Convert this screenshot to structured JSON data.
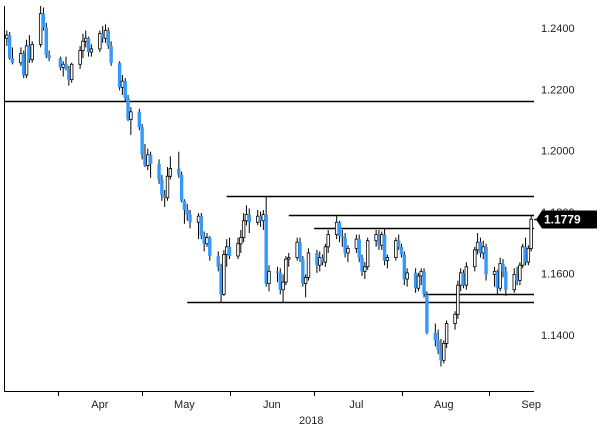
{
  "chart_data": {
    "type": "candlestick",
    "instrument": "",
    "title": "",
    "xlabel": "2018",
    "ylabel": "",
    "y_range": [
      1.122,
      1.2475
    ],
    "y_axis_side": "right",
    "y_ticks": [
      {
        "value": 1.24,
        "label": "1.2400"
      },
      {
        "value": 1.22,
        "label": "1.2200"
      },
      {
        "value": 1.2,
        "label": "1.2000"
      },
      {
        "value": 1.18,
        "label": "1.1800"
      },
      {
        "value": 1.16,
        "label": "1.1600"
      },
      {
        "value": 1.14,
        "label": "1.1400"
      }
    ],
    "x_range": [
      "2018-03-13",
      "2018-09-17"
    ],
    "x_ticks": [
      {
        "date": "2018-04-16",
        "label": "Apr"
      },
      {
        "date": "2018-05-16",
        "label": "May"
      },
      {
        "date": "2018-06-16",
        "label": "Jun"
      },
      {
        "date": "2018-07-16",
        "label": "Jul"
      },
      {
        "date": "2018-08-16",
        "label": "Aug"
      },
      {
        "date": "2018-09-16",
        "label": "Sep"
      }
    ],
    "month_boundaries": [
      "2018-04-01",
      "2018-05-01",
      "2018-06-01",
      "2018-07-01",
      "2018-08-01",
      "2018-09-01"
    ],
    "year_label": "2018",
    "grid": false,
    "legend": "none",
    "up_color": "#ffffff",
    "down_color": "#3399ff",
    "wick_color": "#000000",
    "current_price": {
      "value": 1.1779,
      "label": "1.1779"
    },
    "levels": [
      {
        "name": "resistance",
        "value": 1.2165,
        "from": "2018-03-13",
        "to": "2018-09-17"
      },
      {
        "name": "resistance",
        "value": 1.1855,
        "from": "2018-05-31",
        "to": "2018-09-17"
      },
      {
        "name": "resistance",
        "value": 1.1795,
        "from": "2018-06-22",
        "to": "2018-09-17"
      },
      {
        "name": "resistance",
        "value": 1.175,
        "from": "2018-07-01",
        "to": "2018-09-17"
      },
      {
        "name": "support",
        "value": 1.1535,
        "from": "2018-08-09",
        "to": "2018-09-17"
      },
      {
        "name": "support",
        "value": 1.151,
        "from": "2018-05-17",
        "to": "2018-09-17"
      }
    ],
    "candles": [
      [
        "2018-03-14",
        1.237,
        1.2395,
        1.2345,
        1.238
      ],
      [
        "2018-03-15",
        1.238,
        1.239,
        1.23,
        1.2305
      ],
      [
        "2018-03-16",
        1.2305,
        1.234,
        1.2285,
        1.229
      ],
      [
        "2018-03-19",
        1.229,
        1.234,
        1.228,
        1.232
      ],
      [
        "2018-03-20",
        1.232,
        1.233,
        1.224,
        1.225
      ],
      [
        "2018-03-21",
        1.225,
        1.2365,
        1.224,
        1.2345
      ],
      [
        "2018-03-22",
        1.2345,
        1.238,
        1.229,
        1.23
      ],
      [
        "2018-03-23",
        1.23,
        1.236,
        1.229,
        1.235
      ],
      [
        "2018-03-26",
        1.235,
        1.2475,
        1.234,
        1.245
      ],
      [
        "2018-03-27",
        1.245,
        1.247,
        1.2395,
        1.2405
      ],
      [
        "2018-03-28",
        1.2405,
        1.242,
        1.2305,
        1.2315
      ],
      [
        "2018-03-29",
        1.2315,
        1.233,
        1.2295,
        1.2305
      ],
      [
        "2018-04-02",
        1.2305,
        1.231,
        1.2265,
        1.2275
      ],
      [
        "2018-04-03",
        1.2275,
        1.2295,
        1.2245,
        1.2285
      ],
      [
        "2018-04-04",
        1.2285,
        1.231,
        1.2265,
        1.227
      ],
      [
        "2018-04-05",
        1.227,
        1.228,
        1.2215,
        1.2235
      ],
      [
        "2018-04-06",
        1.2235,
        1.229,
        1.2225,
        1.2285
      ],
      [
        "2018-04-09",
        1.2285,
        1.2345,
        1.227,
        1.233
      ],
      [
        "2018-04-10",
        1.233,
        1.2385,
        1.2305,
        1.236
      ],
      [
        "2018-04-11",
        1.236,
        1.2395,
        1.234,
        1.237
      ],
      [
        "2018-04-12",
        1.237,
        1.2375,
        1.231,
        1.2325
      ],
      [
        "2018-04-13",
        1.2325,
        1.235,
        1.231,
        1.2335
      ],
      [
        "2018-04-16",
        1.2335,
        1.2395,
        1.2325,
        1.2385
      ],
      [
        "2018-04-17",
        1.2385,
        1.241,
        1.2355,
        1.237
      ],
      [
        "2018-04-18",
        1.237,
        1.2415,
        1.2355,
        1.2395
      ],
      [
        "2018-04-19",
        1.2395,
        1.2405,
        1.2335,
        1.2345
      ],
      [
        "2018-04-20",
        1.2345,
        1.236,
        1.228,
        1.229
      ],
      [
        "2018-04-23",
        1.229,
        1.2295,
        1.22,
        1.221
      ],
      [
        "2018-04-24",
        1.221,
        1.225,
        1.2185,
        1.223
      ],
      [
        "2018-04-25",
        1.223,
        1.224,
        1.2165,
        1.2175
      ],
      [
        "2018-04-26",
        1.2175,
        1.2185,
        1.21,
        1.2105
      ],
      [
        "2018-04-27",
        1.2105,
        1.2145,
        1.2055,
        1.213
      ],
      [
        "2018-04-30",
        1.213,
        1.214,
        1.207,
        1.208
      ],
      [
        "2018-05-01",
        1.208,
        1.209,
        1.1975,
        1.199
      ],
      [
        "2018-05-02",
        1.199,
        1.2025,
        1.195,
        1.1955
      ],
      [
        "2018-05-03",
        1.1955,
        1.201,
        1.194,
        1.199
      ],
      [
        "2018-05-04",
        1.199,
        1.2,
        1.1915,
        1.196
      ],
      [
        "2018-05-07",
        1.196,
        1.1975,
        1.1895,
        1.191
      ],
      [
        "2018-05-08",
        1.191,
        1.1925,
        1.184,
        1.186
      ],
      [
        "2018-05-09",
        1.186,
        1.1875,
        1.182,
        1.185
      ],
      [
        "2018-05-10",
        1.185,
        1.195,
        1.184,
        1.192
      ],
      [
        "2018-05-11",
        1.192,
        1.1985,
        1.191,
        1.1945
      ],
      [
        "2018-05-14",
        1.1945,
        1.2,
        1.1915,
        1.1925
      ],
      [
        "2018-05-15",
        1.1925,
        1.1935,
        1.1835,
        1.184
      ],
      [
        "2018-05-16",
        1.184,
        1.1845,
        1.1765,
        1.181
      ],
      [
        "2018-05-17",
        1.181,
        1.183,
        1.1775,
        1.1795
      ],
      [
        "2018-05-18",
        1.1795,
        1.181,
        1.175,
        1.177
      ],
      [
        "2018-05-21",
        1.177,
        1.18,
        1.1715,
        1.179
      ],
      [
        "2018-05-22",
        1.179,
        1.18,
        1.1715,
        1.1725
      ],
      [
        "2018-05-23",
        1.1725,
        1.174,
        1.1675,
        1.17
      ],
      [
        "2018-05-24",
        1.17,
        1.1735,
        1.169,
        1.172
      ],
      [
        "2018-05-25",
        1.172,
        1.1725,
        1.1645,
        1.166
      ],
      [
        "2018-05-28",
        1.166,
        1.1675,
        1.161,
        1.1625
      ],
      [
        "2018-05-29",
        1.1625,
        1.1635,
        1.151,
        1.1535
      ],
      [
        "2018-05-30",
        1.1535,
        1.168,
        1.153,
        1.1665
      ],
      [
        "2018-05-31",
        1.1665,
        1.1715,
        1.1625,
        1.169
      ],
      [
        "2018-06-01",
        1.169,
        1.172,
        1.165,
        1.166
      ],
      [
        "2018-06-04",
        1.166,
        1.172,
        1.165,
        1.17
      ],
      [
        "2018-06-05",
        1.17,
        1.1745,
        1.167,
        1.172
      ],
      [
        "2018-06-06",
        1.172,
        1.18,
        1.1705,
        1.1775
      ],
      [
        "2018-06-07",
        1.1775,
        1.1825,
        1.176,
        1.1795
      ],
      [
        "2018-06-08",
        1.1795,
        1.1815,
        1.1735,
        1.177
      ],
      [
        "2018-06-11",
        1.177,
        1.181,
        1.176,
        1.179
      ],
      [
        "2018-06-12",
        1.179,
        1.1805,
        1.1755,
        1.1775
      ],
      [
        "2018-06-13",
        1.1775,
        1.181,
        1.1745,
        1.1795
      ],
      [
        "2018-06-14",
        1.1795,
        1.1855,
        1.156,
        1.157
      ],
      [
        "2018-06-15",
        1.157,
        1.163,
        1.1545,
        1.161
      ],
      [
        "2018-06-18",
        1.161,
        1.1625,
        1.1575,
        1.1605
      ],
      [
        "2018-06-19",
        1.1605,
        1.162,
        1.1535,
        1.155
      ],
      [
        "2018-06-20",
        1.155,
        1.16,
        1.151,
        1.1575
      ],
      [
        "2018-06-21",
        1.1575,
        1.166,
        1.1565,
        1.165
      ],
      [
        "2018-06-22",
        1.165,
        1.167,
        1.1625,
        1.1655
      ],
      [
        "2018-06-25",
        1.1655,
        1.172,
        1.1645,
        1.1705
      ],
      [
        "2018-06-26",
        1.1705,
        1.172,
        1.164,
        1.165
      ],
      [
        "2018-06-27",
        1.165,
        1.166,
        1.156,
        1.157
      ],
      [
        "2018-06-28",
        1.157,
        1.16,
        1.1525,
        1.159
      ],
      [
        "2018-06-29",
        1.159,
        1.1685,
        1.158,
        1.167
      ],
      [
        "2018-07-02",
        1.167,
        1.168,
        1.1605,
        1.163
      ],
      [
        "2018-07-03",
        1.163,
        1.1675,
        1.161,
        1.1655
      ],
      [
        "2018-07-04",
        1.1655,
        1.1665,
        1.163,
        1.164
      ],
      [
        "2018-07-05",
        1.164,
        1.17,
        1.1625,
        1.169
      ],
      [
        "2018-07-06",
        1.169,
        1.1745,
        1.167,
        1.173
      ],
      [
        "2018-07-09",
        1.173,
        1.179,
        1.1715,
        1.177
      ],
      [
        "2018-07-10",
        1.177,
        1.1775,
        1.1705,
        1.1725
      ],
      [
        "2018-07-11",
        1.1725,
        1.1745,
        1.169,
        1.172
      ],
      [
        "2018-07-12",
        1.172,
        1.1735,
        1.1655,
        1.167
      ],
      [
        "2018-07-13",
        1.167,
        1.1695,
        1.164,
        1.1685
      ],
      [
        "2018-07-16",
        1.1685,
        1.173,
        1.167,
        1.1715
      ],
      [
        "2018-07-17",
        1.1715,
        1.173,
        1.164,
        1.1655
      ],
      [
        "2018-07-18",
        1.1655,
        1.1665,
        1.1595,
        1.161
      ],
      [
        "2018-07-19",
        1.161,
        1.164,
        1.1585,
        1.1625
      ],
      [
        "2018-07-20",
        1.1625,
        1.172,
        1.1615,
        1.171
      ],
      [
        "2018-07-23",
        1.171,
        1.1745,
        1.169,
        1.173
      ],
      [
        "2018-07-24",
        1.173,
        1.1745,
        1.168,
        1.1695
      ],
      [
        "2018-07-25",
        1.1695,
        1.174,
        1.168,
        1.173
      ],
      [
        "2018-07-26",
        1.173,
        1.175,
        1.163,
        1.1645
      ],
      [
        "2018-07-27",
        1.1645,
        1.1665,
        1.162,
        1.1655
      ],
      [
        "2018-07-30",
        1.1655,
        1.172,
        1.1645,
        1.171
      ],
      [
        "2018-07-31",
        1.171,
        1.173,
        1.168,
        1.169
      ],
      [
        "2018-08-01",
        1.169,
        1.17,
        1.1655,
        1.1665
      ],
      [
        "2018-08-02",
        1.1665,
        1.1675,
        1.1565,
        1.1585
      ],
      [
        "2018-08-03",
        1.1585,
        1.162,
        1.156,
        1.1605
      ],
      [
        "2018-08-06",
        1.1605,
        1.162,
        1.154,
        1.1555
      ],
      [
        "2018-08-07",
        1.1555,
        1.1605,
        1.1545,
        1.1595
      ],
      [
        "2018-08-08",
        1.1595,
        1.162,
        1.1565,
        1.161
      ],
      [
        "2018-08-09",
        1.161,
        1.162,
        1.1525,
        1.1535
      ],
      [
        "2018-08-10",
        1.1535,
        1.1545,
        1.1405,
        1.141
      ],
      [
        "2018-08-13",
        1.141,
        1.144,
        1.1365,
        1.1385
      ],
      [
        "2018-08-14",
        1.1385,
        1.142,
        1.134,
        1.1355
      ],
      [
        "2018-08-15",
        1.1355,
        1.139,
        1.13,
        1.132
      ],
      [
        "2018-08-16",
        1.132,
        1.1385,
        1.131,
        1.1375
      ],
      [
        "2018-08-17",
        1.1375,
        1.145,
        1.136,
        1.144
      ],
      [
        "2018-08-20",
        1.144,
        1.148,
        1.142,
        1.147
      ],
      [
        "2018-08-21",
        1.147,
        1.158,
        1.1455,
        1.1565
      ],
      [
        "2018-08-22",
        1.1565,
        1.162,
        1.1545,
        1.1605
      ],
      [
        "2018-08-23",
        1.1605,
        1.1615,
        1.1555,
        1.1565
      ],
      [
        "2018-08-24",
        1.1565,
        1.164,
        1.155,
        1.1625
      ],
      [
        "2018-08-27",
        1.1625,
        1.169,
        1.161,
        1.168
      ],
      [
        "2018-08-28",
        1.168,
        1.1735,
        1.1665,
        1.1705
      ],
      [
        "2018-08-29",
        1.1705,
        1.172,
        1.1655,
        1.167
      ],
      [
        "2018-08-30",
        1.167,
        1.171,
        1.165,
        1.169
      ],
      [
        "2018-08-31",
        1.169,
        1.17,
        1.158,
        1.16
      ],
      [
        "2018-09-03",
        1.16,
        1.1625,
        1.156,
        1.161
      ],
      [
        "2018-09-04",
        1.161,
        1.1615,
        1.1535,
        1.1555
      ],
      [
        "2018-09-05",
        1.1555,
        1.1655,
        1.1545,
        1.1635
      ],
      [
        "2018-09-06",
        1.1635,
        1.165,
        1.159,
        1.161
      ],
      [
        "2018-09-07",
        1.161,
        1.1625,
        1.153,
        1.155
      ],
      [
        "2018-09-10",
        1.155,
        1.162,
        1.154,
        1.16
      ],
      [
        "2018-09-11",
        1.16,
        1.1625,
        1.1565,
        1.158
      ],
      [
        "2018-09-12",
        1.158,
        1.164,
        1.1565,
        1.163
      ],
      [
        "2018-09-13",
        1.163,
        1.17,
        1.162,
        1.169
      ],
      [
        "2018-09-14",
        1.169,
        1.172,
        1.163,
        1.164
      ],
      [
        "2018-09-15",
        1.164,
        1.1695,
        1.163,
        1.1685
      ],
      [
        "2018-09-16",
        1.1685,
        1.179,
        1.1675,
        1.178
      ]
    ]
  }
}
